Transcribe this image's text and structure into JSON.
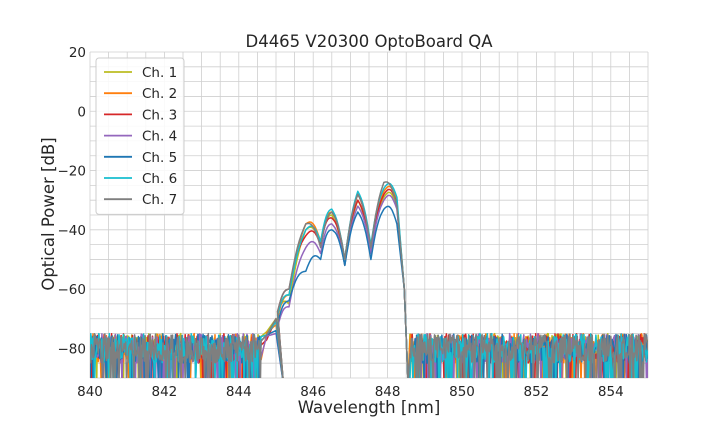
{
  "chart_data": {
    "type": "line",
    "title": "D4465 V20300 OptoBoard QA",
    "xlabel": "Wavelength [nm]",
    "ylabel": "Optical Power [dB]",
    "xlim": [
      840,
      855
    ],
    "ylim": [
      -90,
      20
    ],
    "xticks": [
      840,
      842,
      844,
      846,
      848,
      850,
      852,
      854
    ],
    "yticks": [
      -80,
      -60,
      -40,
      -20,
      0,
      20
    ],
    "xtick_labels": [
      "840",
      "842",
      "844",
      "846",
      "848",
      "850",
      "852",
      "854"
    ],
    "ytick_labels": [
      "−80",
      "−60",
      "−40",
      "−20",
      "0",
      "20"
    ],
    "grid": true,
    "legend_position": "top-left",
    "noise_floor_db": -80,
    "series": [
      {
        "name": "Ch. 1",
        "color": "#bcbd22",
        "x": [
          845.0,
          845.35,
          845.8,
          846.2,
          846.5,
          846.85,
          847.2,
          847.55,
          847.9,
          848.25
        ],
        "y": [
          -70,
          -65,
          -40,
          -45,
          -35,
          -52,
          -30,
          -48,
          -29,
          -32
        ]
      },
      {
        "name": "Ch. 2",
        "color": "#ff7f0e",
        "x": [
          845.0,
          845.35,
          845.8,
          846.2,
          846.5,
          846.85,
          847.2,
          847.55,
          847.9,
          848.25
        ],
        "y": [
          -72,
          -62,
          -38,
          -44,
          -34,
          -50,
          -28,
          -46,
          -27,
          -30
        ]
      },
      {
        "name": "Ch. 3",
        "color": "#d62728",
        "x": [
          845.0,
          845.35,
          845.8,
          846.2,
          846.5,
          846.85,
          847.2,
          847.55,
          847.9,
          848.25
        ],
        "y": [
          -70,
          -60,
          -42,
          -45,
          -36,
          -50,
          -30,
          -47,
          -28,
          -31
        ]
      },
      {
        "name": "Ch. 4",
        "color": "#9467bd",
        "x": [
          845.0,
          845.35,
          845.8,
          846.2,
          846.5,
          846.85,
          847.2,
          847.55,
          847.9,
          848.25
        ],
        "y": [
          -75,
          -66,
          -46,
          -48,
          -38,
          -52,
          -32,
          -48,
          -30,
          -33
        ]
      },
      {
        "name": "Ch. 5",
        "color": "#1f77b4",
        "x": [
          845.0,
          845.35,
          845.8,
          846.2,
          846.5,
          846.85,
          847.2,
          847.55,
          847.9,
          848.25
        ],
        "y": [
          -74,
          -64,
          -54,
          -50,
          -40,
          -52,
          -34,
          -50,
          -33,
          -38
        ]
      },
      {
        "name": "Ch. 6",
        "color": "#17becf",
        "x": [
          845.0,
          845.35,
          845.8,
          846.2,
          846.5,
          846.85,
          847.2,
          847.55,
          847.9,
          848.25
        ],
        "y": [
          -71,
          -62,
          -40,
          -44,
          -33,
          -50,
          -27,
          -45,
          -26,
          -29
        ]
      },
      {
        "name": "Ch. 7",
        "color": "#7f7f7f",
        "x": [
          845.0,
          845.35,
          845.8,
          846.2,
          846.5,
          846.85,
          847.2,
          847.55,
          847.9,
          848.25
        ],
        "y": [
          -70,
          -60,
          -38,
          -46,
          -34,
          -50,
          -28,
          -46,
          -24,
          -32
        ]
      }
    ]
  }
}
